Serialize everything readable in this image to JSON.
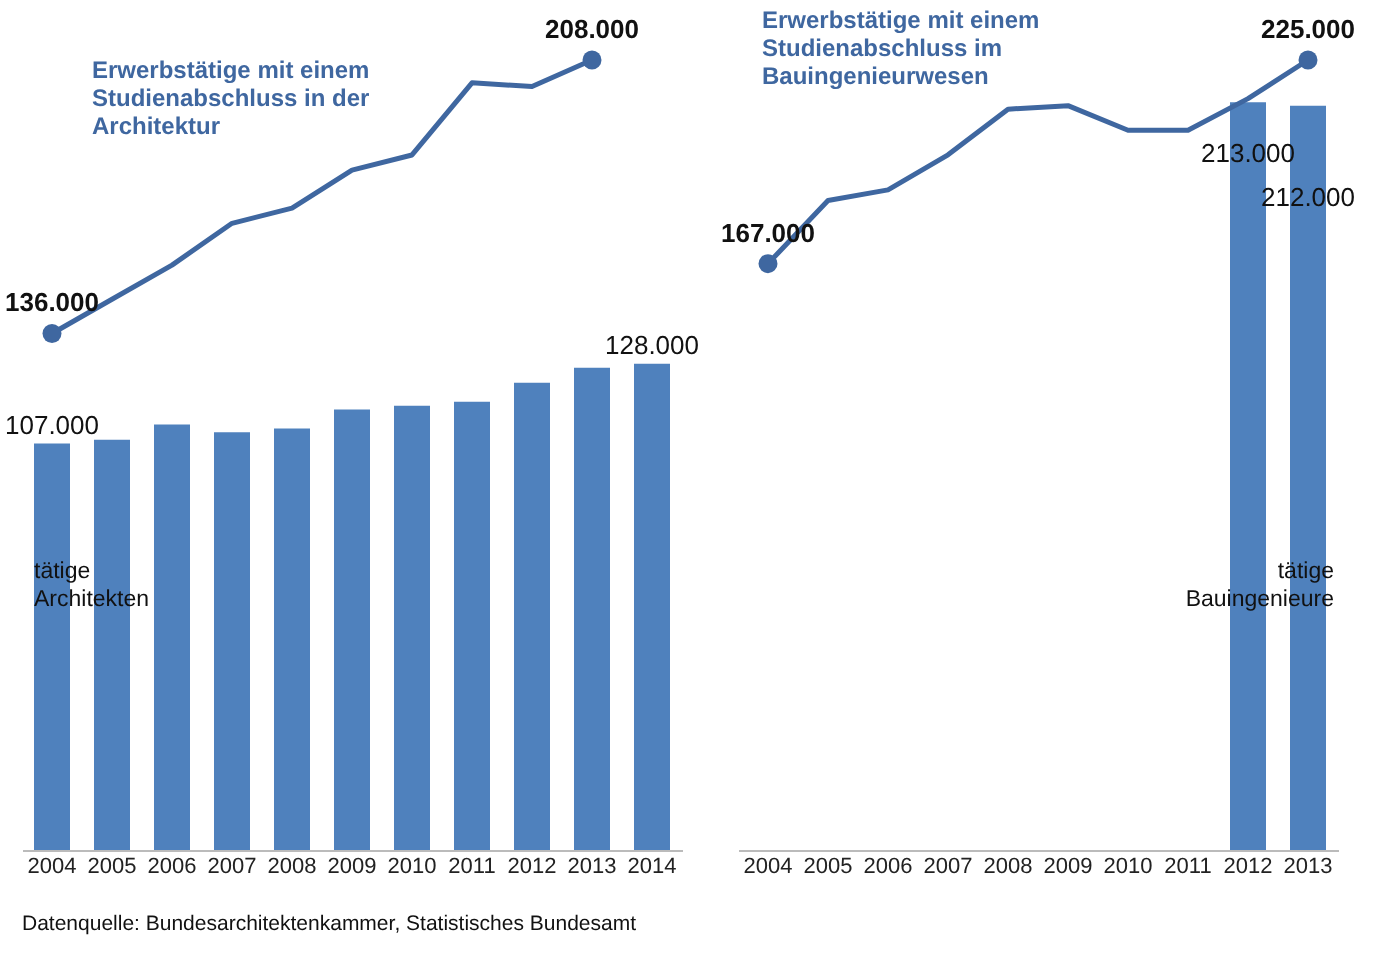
{
  "chart_data": [
    {
      "type": "bar",
      "categories": [
        "2004",
        "2005",
        "2006",
        "2007",
        "2008",
        "2009",
        "2010",
        "2011",
        "2012",
        "2013",
        "2014"
      ],
      "tick_labels": "x",
      "grid": false,
      "line_style": "solid",
      "series": [
        {
          "name": "tätige Architekten",
          "color": "#4f81bd",
          "values": [
            107000,
            108000,
            112000,
            110000,
            111000,
            116000,
            117000,
            118000,
            123000,
            127000,
            128000
          ],
          "value_labels": [
            "107.000",
            null,
            null,
            null,
            null,
            null,
            null,
            null,
            null,
            null,
            "128.000"
          ]
        },
        {
          "name": "Erwerbstätige mit einem Studienabschluss in der Architektur",
          "type": "line",
          "color": "#3f67a0",
          "values": [
            136000,
            145000,
            154000,
            165000,
            169000,
            179000,
            183000,
            202000,
            201000,
            208000,
            null
          ],
          "value_labels": [
            "136.000",
            null,
            null,
            null,
            null,
            null,
            null,
            null,
            null,
            "208.000",
            null
          ]
        }
      ],
      "annotations": [
        "Datenquelle: Bundesarchitektenkammer, Statistisches Bundesamt"
      ]
    },
    {
      "type": "bar",
      "categories": [
        "2004",
        "2005",
        "2006",
        "2007",
        "2008",
        "2009",
        "2010",
        "2011",
        "2012",
        "2013"
      ],
      "tick_labels": "x",
      "grid": false,
      "line_style": "solid",
      "series": [
        {
          "name": "tätige Bauingenieure",
          "color": "#4f81bd",
          "values": [
            null,
            null,
            null,
            null,
            null,
            null,
            null,
            null,
            213000,
            212000
          ],
          "value_labels": [
            null,
            null,
            null,
            null,
            null,
            null,
            null,
            null,
            "213.000",
            "212.000"
          ]
        },
        {
          "name": "Erwerbstätige mit einem Studienabschluss im Bauingenieurwesen",
          "type": "line",
          "color": "#3f67a0",
          "values": [
            167000,
            185000,
            188000,
            198000,
            211000,
            212000,
            205000,
            205000,
            214000,
            225000
          ],
          "value_labels": [
            "167.000",
            null,
            null,
            null,
            null,
            null,
            null,
            null,
            null,
            "225.000"
          ]
        }
      ]
    }
  ]
}
